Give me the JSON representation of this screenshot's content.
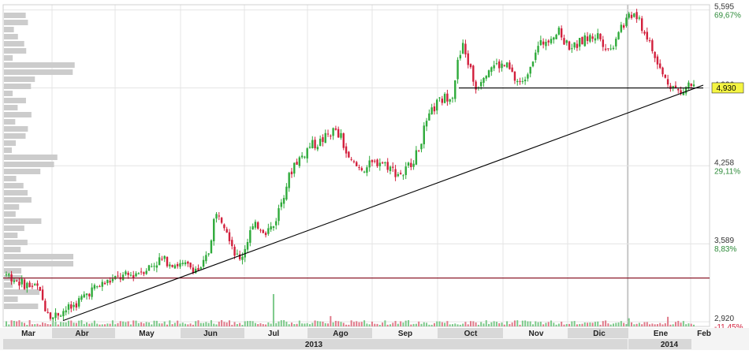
{
  "chart_data": {
    "type": "candlestick",
    "title": "",
    "xlabel": "",
    "ylabel": "",
    "ylim": [
      2880,
      5640
    ],
    "colors": {
      "up": "#2eaa3a",
      "down": "#d21f3c",
      "reference_line": "#8b1a2a",
      "trend_line": "#000000",
      "current_price_label": "#f5f542",
      "grid": "#e4e4e4",
      "volume_profile": "#cccccc"
    },
    "y_ticks": [
      {
        "value": 5595,
        "label": "5,595",
        "pct": "69,67%",
        "pct_color": "#2e8b3a"
      },
      {
        "value": 4926,
        "label": "4,926",
        "pct": "",
        "pct_color": "#2e8b3a"
      },
      {
        "value": 4258,
        "label": "4,258",
        "pct": "29,11%",
        "pct_color": "#2e8b3a"
      },
      {
        "value": 3589,
        "label": "3,589",
        "pct": "8,83%",
        "pct_color": "#2e8b3a"
      },
      {
        "value": 2920,
        "label": "2,920",
        "pct": "-11,45%",
        "pct_color": "#d21f3c"
      }
    ],
    "current_price": {
      "value": 4930,
      "label": "4,930"
    },
    "reference_level": 3295,
    "x_months": [
      "Mar",
      "Abr",
      "May",
      "Jun",
      "Jul",
      "Ago",
      "Sep",
      "Oct",
      "Nov",
      "Dic",
      "Ene",
      "Feb"
    ],
    "x_years": [
      "2013",
      "2014"
    ],
    "price_path": [
      [
        0,
        3330
      ],
      [
        6,
        3250
      ],
      [
        12,
        3210
      ],
      [
        15,
        3050
      ],
      [
        18,
        2960
      ],
      [
        21,
        3010
      ],
      [
        25,
        3040
      ],
      [
        28,
        3100
      ],
      [
        32,
        3180
      ],
      [
        36,
        3230
      ],
      [
        40,
        3270
      ],
      [
        44,
        3300
      ],
      [
        48,
        3320
      ],
      [
        52,
        3360
      ],
      [
        56,
        3400
      ],
      [
        59,
        3450
      ],
      [
        62,
        3440
      ],
      [
        65,
        3420
      ],
      [
        68,
        3400
      ],
      [
        71,
        3390
      ],
      [
        75,
        3360
      ],
      [
        78,
        3520
      ],
      [
        80,
        3790
      ],
      [
        82,
        3860
      ],
      [
        85,
        3720
      ],
      [
        88,
        3520
      ],
      [
        90,
        3440
      ],
      [
        92,
        3560
      ],
      [
        94,
        3700
      ],
      [
        97,
        3750
      ],
      [
        100,
        3700
      ],
      [
        103,
        3740
      ],
      [
        105,
        3880
      ],
      [
        108,
        4100
      ],
      [
        111,
        4280
      ],
      [
        114,
        4340
      ],
      [
        117,
        4430
      ],
      [
        120,
        4450
      ],
      [
        123,
        4500
      ],
      [
        126,
        4560
      ],
      [
        129,
        4500
      ],
      [
        132,
        4300
      ],
      [
        135,
        4250
      ],
      [
        138,
        4240
      ],
      [
        141,
        4270
      ],
      [
        144,
        4300
      ],
      [
        147,
        4260
      ],
      [
        150,
        4200
      ],
      [
        153,
        4190
      ],
      [
        156,
        4290
      ],
      [
        158,
        4350
      ],
      [
        161,
        4560
      ],
      [
        164,
        4720
      ],
      [
        166,
        4790
      ],
      [
        169,
        4840
      ],
      [
        172,
        4880
      ],
      [
        174,
        5140
      ],
      [
        176,
        5280
      ],
      [
        179,
        5080
      ],
      [
        181,
        4920
      ],
      [
        184,
        5050
      ],
      [
        187,
        5120
      ],
      [
        190,
        5120
      ],
      [
        193,
        5110
      ],
      [
        196,
        5000
      ],
      [
        199,
        4960
      ],
      [
        201,
        5080
      ],
      [
        204,
        5250
      ],
      [
        207,
        5320
      ],
      [
        210,
        5380
      ],
      [
        213,
        5400
      ],
      [
        216,
        5300
      ],
      [
        219,
        5280
      ],
      [
        222,
        5330
      ],
      [
        225,
        5360
      ],
      [
        228,
        5380
      ],
      [
        231,
        5290
      ],
      [
        233,
        5250
      ],
      [
        236,
        5430
      ],
      [
        239,
        5500
      ],
      [
        242,
        5560
      ],
      [
        245,
        5450
      ],
      [
        248,
        5310
      ],
      [
        251,
        5120
      ],
      [
        254,
        5000
      ],
      [
        257,
        4940
      ],
      [
        260,
        4870
      ],
      [
        263,
        4960
      ],
      [
        265,
        4930
      ]
    ]
  }
}
